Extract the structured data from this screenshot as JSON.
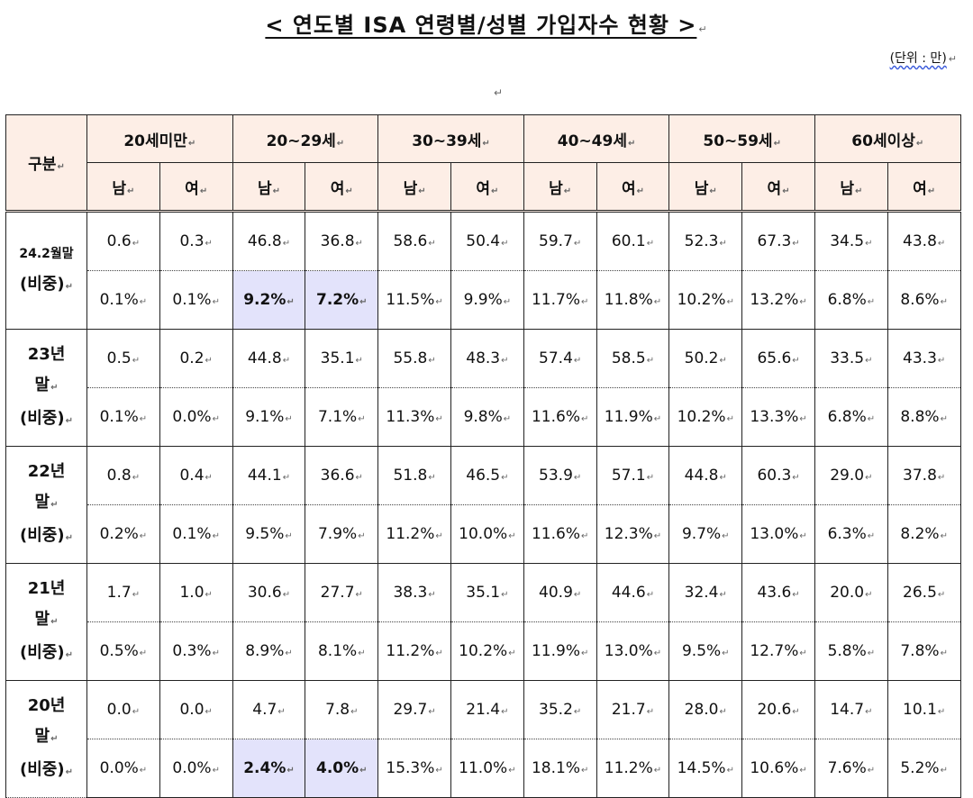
{
  "title": "< 연도별 ISA 연령별/성별 가입자수 현황 >",
  "unit": "(단위 : 만)",
  "header": {
    "corner": "구분",
    "age_groups": [
      "20세미만",
      "20~29세",
      "30~39세",
      "40~49세",
      "50~59세",
      "60세이상"
    ],
    "male": "남",
    "female": "여"
  },
  "rows": [
    {
      "label_top": "24.2월말",
      "label_bottom": "(비중)",
      "values": [
        "0.6",
        "0.3",
        "46.8",
        "36.8",
        "58.6",
        "50.4",
        "59.7",
        "60.1",
        "52.3",
        "67.3",
        "34.5",
        "43.8"
      ],
      "shares": [
        "0.1%",
        "0.1%",
        "9.2%",
        "7.2%",
        "11.5%",
        "9.9%",
        "11.7%",
        "11.8%",
        "10.2%",
        "13.2%",
        "6.8%",
        "8.6%"
      ]
    },
    {
      "label_top": "23년",
      "label_mid": "말",
      "label_bottom": "(비중)",
      "values": [
        "0.5",
        "0.2",
        "44.8",
        "35.1",
        "55.8",
        "48.3",
        "57.4",
        "58.5",
        "50.2",
        "65.6",
        "33.5",
        "43.3"
      ],
      "shares": [
        "0.1%",
        "0.0%",
        "9.1%",
        "7.1%",
        "11.3%",
        "9.8%",
        "11.6%",
        "11.9%",
        "10.2%",
        "13.3%",
        "6.8%",
        "8.8%"
      ]
    },
    {
      "label_top": "22년",
      "label_mid": "말",
      "label_bottom": "(비중)",
      "values": [
        "0.8",
        "0.4",
        "44.1",
        "36.6",
        "51.8",
        "46.5",
        "53.9",
        "57.1",
        "44.8",
        "60.3",
        "29.0",
        "37.8"
      ],
      "shares": [
        "0.2%",
        "0.1%",
        "9.5%",
        "7.9%",
        "11.2%",
        "10.0%",
        "11.6%",
        "12.3%",
        "9.7%",
        "13.0%",
        "6.3%",
        "8.2%"
      ]
    },
    {
      "label_top": "21년",
      "label_mid": "말",
      "label_bottom": "(비중)",
      "values": [
        "1.7",
        "1.0",
        "30.6",
        "27.7",
        "38.3",
        "35.1",
        "40.9",
        "44.6",
        "32.4",
        "43.6",
        "20.0",
        "26.5"
      ],
      "shares": [
        "0.5%",
        "0.3%",
        "8.9%",
        "8.1%",
        "11.2%",
        "10.2%",
        "11.9%",
        "13.0%",
        "9.5%",
        "12.7%",
        "5.8%",
        "7.8%"
      ]
    },
    {
      "label_top": "20년",
      "label_mid": "말",
      "label_bottom": "(비중)",
      "values": [
        "0.0",
        "0.0",
        "4.7",
        "7.8",
        "29.7",
        "21.4",
        "35.2",
        "21.7",
        "28.0",
        "20.6",
        "14.7",
        "10.1"
      ],
      "shares": [
        "0.0%",
        "0.0%",
        "2.4%",
        "4.0%",
        "15.3%",
        "11.0%",
        "18.1%",
        "11.2%",
        "14.5%",
        "10.6%",
        "7.6%",
        "5.2%"
      ]
    }
  ],
  "colors": {
    "header_bg": "#fdeee6",
    "highlight_bg": "#e3e3fb"
  },
  "highlight_cells": [
    {
      "row": 0,
      "col": 2
    },
    {
      "row": 0,
      "col": 3
    },
    {
      "row": 4,
      "col": 2
    },
    {
      "row": 4,
      "col": 3
    }
  ],
  "paragraph_mark": "↵"
}
